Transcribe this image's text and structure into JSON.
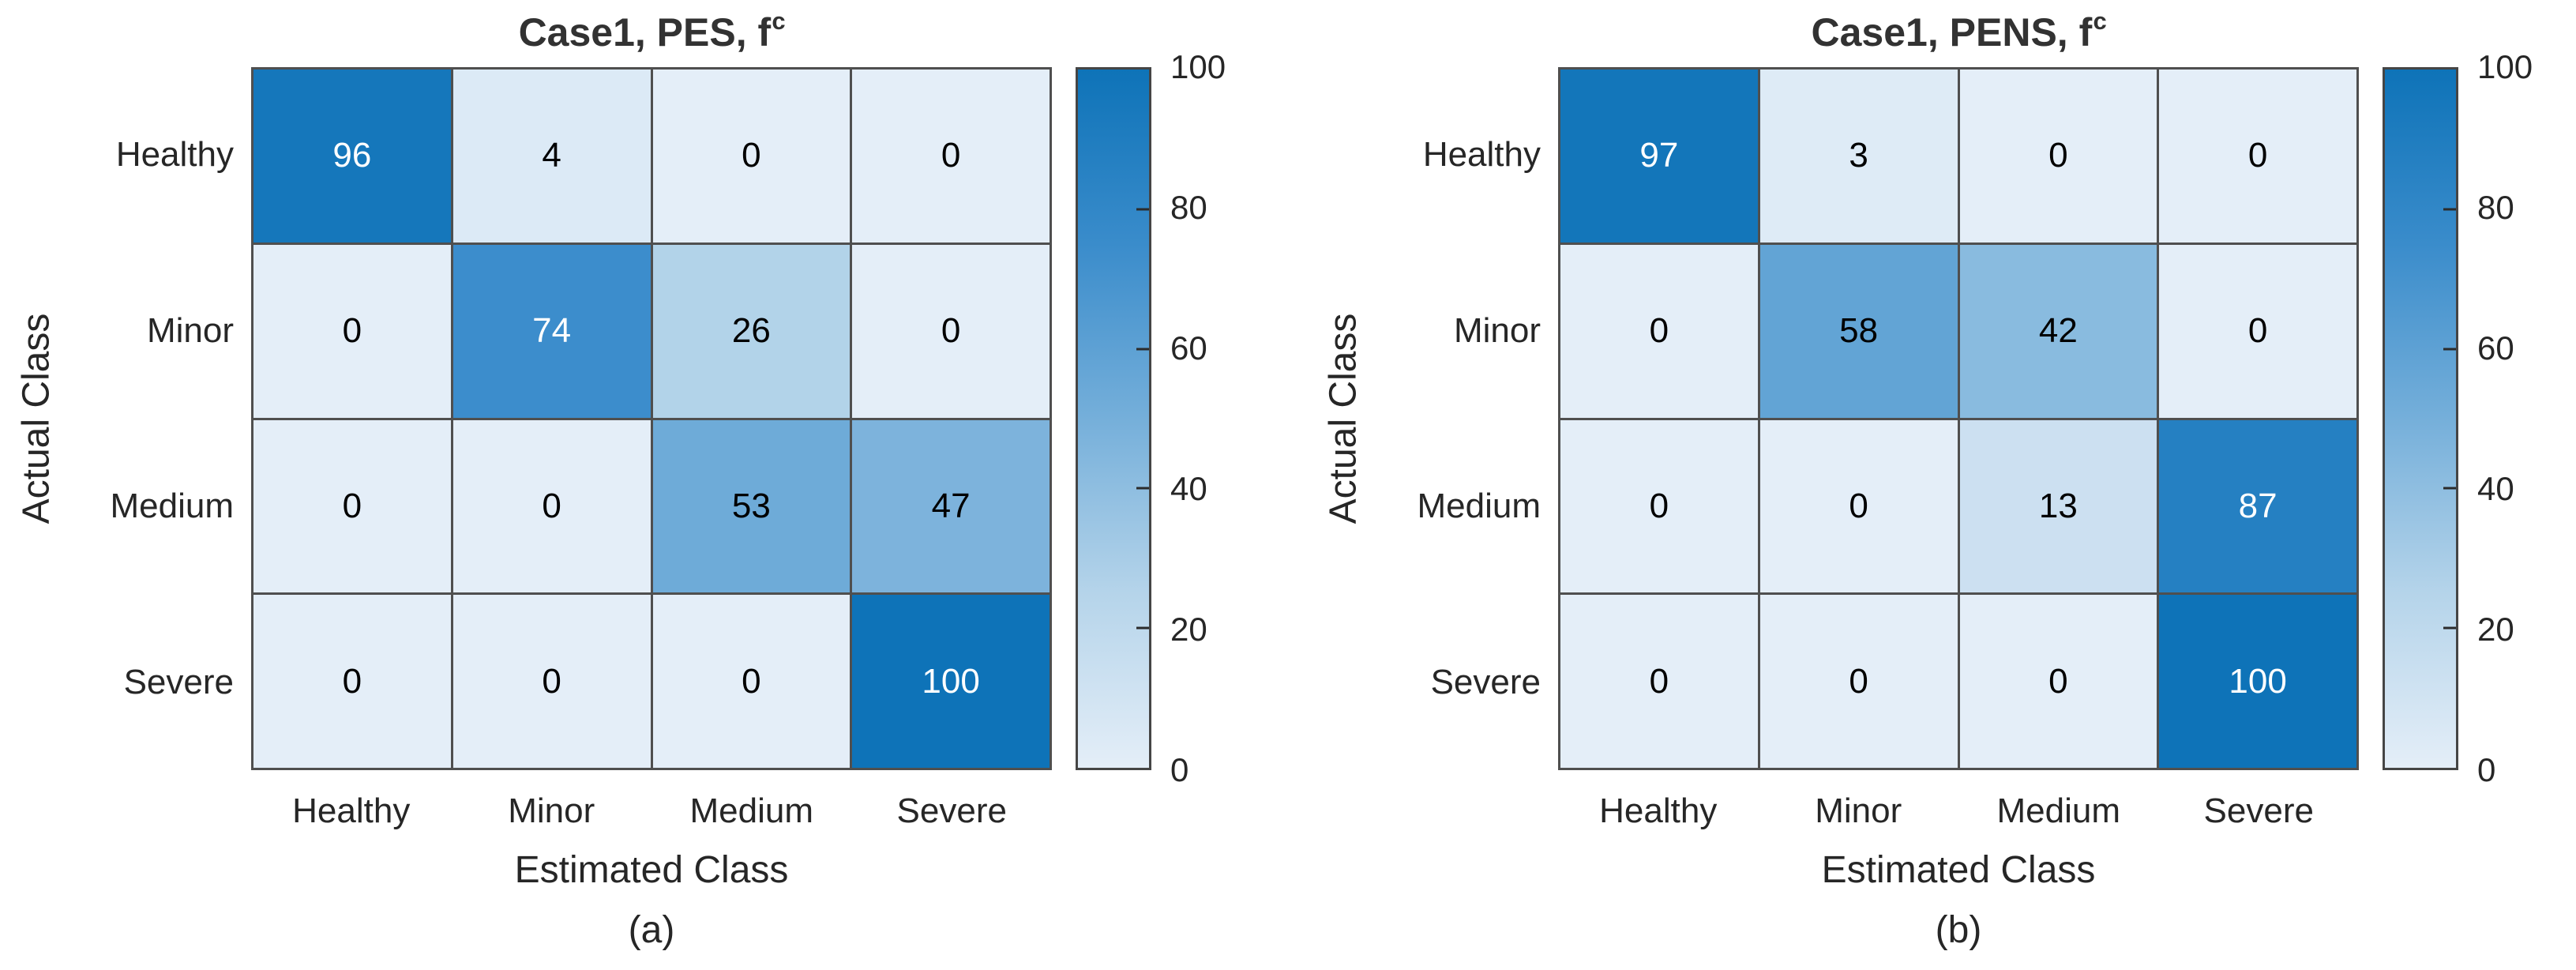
{
  "style": {
    "background": "#ffffff",
    "grid_line_color": "#4f4f4f",
    "axes_border_color": "#4f4f4f",
    "colorbar_border_color": "#454545",
    "label_color": "#262626",
    "title_color": "#323232",
    "cell_text_on_dark": "#ffffff",
    "cell_text_on_light": "#000000",
    "colormap_stops": [
      {
        "t": 0,
        "color": "#e4eef8"
      },
      {
        "t": 25,
        "color": "#b5d4ea"
      },
      {
        "t": 50,
        "color": "#75afda"
      },
      {
        "t": 75,
        "color": "#3a8ccb"
      },
      {
        "t": 100,
        "color": "#0e73b8"
      }
    ]
  },
  "chart_data": [
    {
      "type": "heatmap",
      "title": "Case1, PES, f^c",
      "title_main": "Case1, PES, f",
      "title_sup": "c",
      "xlabel": "Estimated Class",
      "ylabel": "Actual Class",
      "caption": "(a)",
      "x_categories": [
        "Healthy",
        "Minor",
        "Medium",
        "Severe"
      ],
      "y_categories": [
        "Healthy",
        "Minor",
        "Medium",
        "Severe"
      ],
      "values": [
        [
          96,
          4,
          0,
          0
        ],
        [
          0,
          74,
          26,
          0
        ],
        [
          0,
          0,
          53,
          47
        ],
        [
          0,
          0,
          0,
          100
        ]
      ],
      "colorbar": {
        "min": 0,
        "max": 100,
        "ticks": [
          0,
          20,
          40,
          60,
          80,
          100
        ],
        "position": "right"
      },
      "grid": true,
      "legend": "none"
    },
    {
      "type": "heatmap",
      "title": "Case1, PENS, f^c",
      "title_main": "Case1, PENS, f",
      "title_sup": "c",
      "xlabel": "Estimated Class",
      "ylabel": "Actual Class",
      "caption": "(b)",
      "x_categories": [
        "Healthy",
        "Minor",
        "Medium",
        "Severe"
      ],
      "y_categories": [
        "Healthy",
        "Minor",
        "Medium",
        "Severe"
      ],
      "values": [
        [
          97,
          3,
          0,
          0
        ],
        [
          0,
          58,
          42,
          0
        ],
        [
          0,
          0,
          13,
          87
        ],
        [
          0,
          0,
          0,
          100
        ]
      ],
      "colorbar": {
        "min": 0,
        "max": 100,
        "ticks": [
          0,
          20,
          40,
          60,
          80,
          100
        ],
        "position": "right"
      },
      "grid": true,
      "legend": "none"
    }
  ]
}
